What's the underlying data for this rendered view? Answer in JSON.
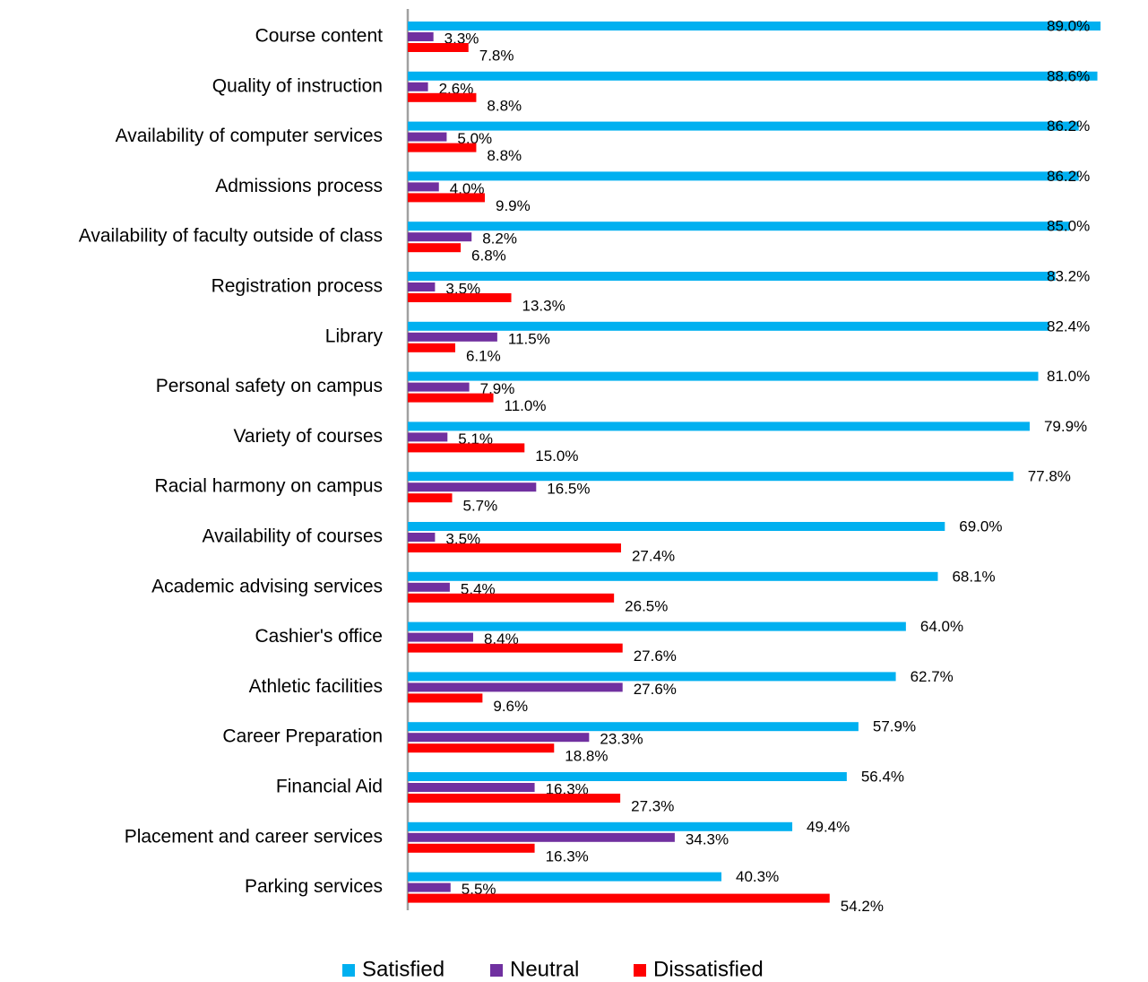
{
  "chart_data": {
    "type": "bar",
    "orientation": "horizontal",
    "categories": [
      "Course content",
      "Quality of instruction",
      "Availability of computer services",
      "Admissions process",
      "Availability of faculty outside of class",
      "Registration process",
      "Library",
      "Personal safety on campus",
      "Variety of courses",
      "Racial harmony on campus",
      "Availability of courses",
      "Academic advising services",
      "Cashier's office",
      "Athletic facilities",
      "Career Preparation",
      "Financial Aid",
      "Placement and career services",
      "Parking services"
    ],
    "series": [
      {
        "name": "Satisfied",
        "color": "#00b0f0",
        "values": [
          89.0,
          88.6,
          86.2,
          86.2,
          85.0,
          83.2,
          82.4,
          81.0,
          79.9,
          77.8,
          69.0,
          68.1,
          64.0,
          62.7,
          57.9,
          56.4,
          49.4,
          40.3
        ],
        "value_labels": [
          "89.0%",
          "88.6%",
          "86.2%",
          "86.2%",
          "85.0%",
          "83.2%",
          "82.4%",
          "81.0%",
          "79.9%",
          "77.8%",
          "69.0%",
          "68.1%",
          "64.0%",
          "62.7%",
          "57.9%",
          "56.4%",
          "49.4%",
          "40.3%"
        ]
      },
      {
        "name": "Neutral",
        "color": "#7030a0",
        "values": [
          3.3,
          2.6,
          5.0,
          4.0,
          8.2,
          3.5,
          11.5,
          7.9,
          5.1,
          16.5,
          3.5,
          5.4,
          8.4,
          27.6,
          23.3,
          16.3,
          34.3,
          5.5
        ],
        "value_labels": [
          "3.3%",
          "2.6%",
          "5.0%",
          "4.0%",
          "8.2%",
          "3.5%",
          "11.5%",
          "7.9%",
          "5.1%",
          "16.5%",
          "3.5%",
          "5.4%",
          "8.4%",
          "27.6%",
          "23.3%",
          "16.3%",
          "34.3%",
          "5.5%"
        ]
      },
      {
        "name": "Dissatisfied",
        "color": "#ff0000",
        "values": [
          7.8,
          8.8,
          8.8,
          9.9,
          6.8,
          13.3,
          6.1,
          11.0,
          15.0,
          5.7,
          27.4,
          26.5,
          27.6,
          9.6,
          18.8,
          27.3,
          16.3,
          54.2
        ],
        "value_labels": [
          "7.8%",
          "8.8%",
          "8.8%",
          "9.9%",
          "6.8%",
          "13.3%",
          "6.1%",
          "11.0%",
          "15.0%",
          "5.7%",
          "27.4%",
          "26.5%",
          "27.6%",
          "9.6%",
          "18.8%",
          "27.3%",
          "16.3%",
          "54.2%"
        ]
      }
    ],
    "legend": "bottom"
  }
}
